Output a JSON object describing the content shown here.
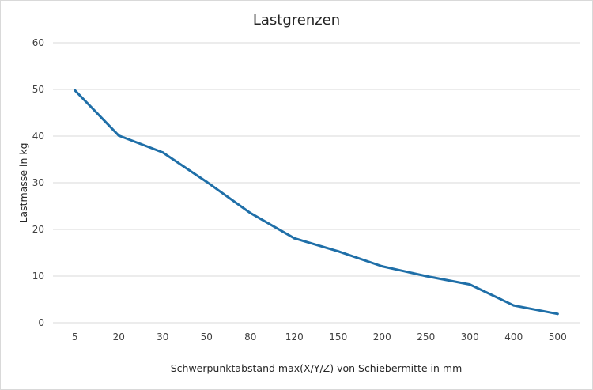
{
  "chart_data": {
    "type": "line",
    "title": "Lastgrenzen",
    "xlabel": "Schwerpunktabstand max(X/Y/Z) von Schiebermitte in mm",
    "ylabel": "Lastmasse in kg",
    "categories": [
      "5",
      "20",
      "30",
      "50",
      "80",
      "120",
      "150",
      "200",
      "250",
      "300",
      "400",
      "500"
    ],
    "series": [
      {
        "values": [
          49.8,
          40.1,
          36.5,
          30.2,
          23.5,
          18.1,
          15.3,
          12.1,
          10.0,
          8.2,
          3.7,
          1.9
        ]
      }
    ],
    "ylim": [
      0,
      60
    ],
    "yticks": [
      "0",
      "10",
      "20",
      "30",
      "40",
      "50",
      "60"
    ],
    "grid": true,
    "line_color": "#1f6fa8",
    "grid_color": "#d9d9d9"
  }
}
